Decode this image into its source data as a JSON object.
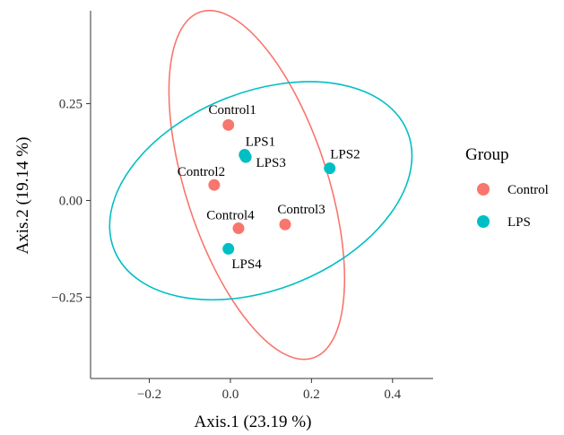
{
  "chart_data": {
    "type": "scatter",
    "xlabel": "Axis.1   (23.19 %)",
    "ylabel": "Axis.2   (19.14 %)",
    "xlim": [
      -0.345,
      0.5
    ],
    "ylim": [
      -0.46,
      0.49
    ],
    "x_ticks": [
      {
        "value": -0.2,
        "label": "−0.2"
      },
      {
        "value": 0.0,
        "label": "0.0"
      },
      {
        "value": 0.2,
        "label": "0.2"
      },
      {
        "value": 0.4,
        "label": "0.4"
      }
    ],
    "y_ticks": [
      {
        "value": 0.25,
        "label": "0.25"
      },
      {
        "value": 0.0,
        "label": "0.00"
      },
      {
        "value": -0.25,
        "label": "−0.25"
      }
    ],
    "grid": false,
    "legend": {
      "title": "Group",
      "placement": "right",
      "entries": [
        {
          "name": "Control",
          "color": "#F8766D"
        },
        {
          "name": "LPS",
          "color": "#00BFC4"
        }
      ]
    },
    "points": [
      {
        "label": "Control1",
        "group": "Control",
        "x": -0.005,
        "y": 0.195,
        "lx": 0.005,
        "ly": 0.235
      },
      {
        "label": "Control2",
        "group": "Control",
        "x": -0.04,
        "y": 0.04,
        "lx": -0.072,
        "ly": 0.075
      },
      {
        "label": "Control3",
        "group": "Control",
        "x": 0.135,
        "y": -0.062,
        "lx": 0.175,
        "ly": -0.022
      },
      {
        "label": "Control4",
        "group": "Control",
        "x": 0.02,
        "y": -0.072,
        "lx": 0.0,
        "ly": -0.037
      },
      {
        "label": "LPS1",
        "group": "LPS",
        "x": 0.035,
        "y": 0.118,
        "lx": 0.074,
        "ly": 0.153
      },
      {
        "label": "LPS2",
        "group": "LPS",
        "x": 0.245,
        "y": 0.083,
        "lx": 0.283,
        "ly": 0.12
      },
      {
        "label": "LPS3",
        "group": "LPS",
        "x": 0.038,
        "y": 0.112,
        "lx": 0.1,
        "ly": 0.098
      },
      {
        "label": "LPS4",
        "group": "LPS",
        "x": -0.005,
        "y": -0.125,
        "lx": 0.04,
        "ly": -0.163
      }
    ],
    "ellipses": [
      {
        "group": "Control",
        "cx": 0.065,
        "cy": 0.04,
        "rx": 0.175,
        "ry": 0.47,
        "rotation_deg": -18,
        "color": "#F8766D"
      },
      {
        "group": "LPS",
        "cx": 0.075,
        "cy": 0.025,
        "rx": 0.39,
        "ry": 0.255,
        "rotation_deg": -22,
        "color": "#00BFC4"
      }
    ]
  }
}
